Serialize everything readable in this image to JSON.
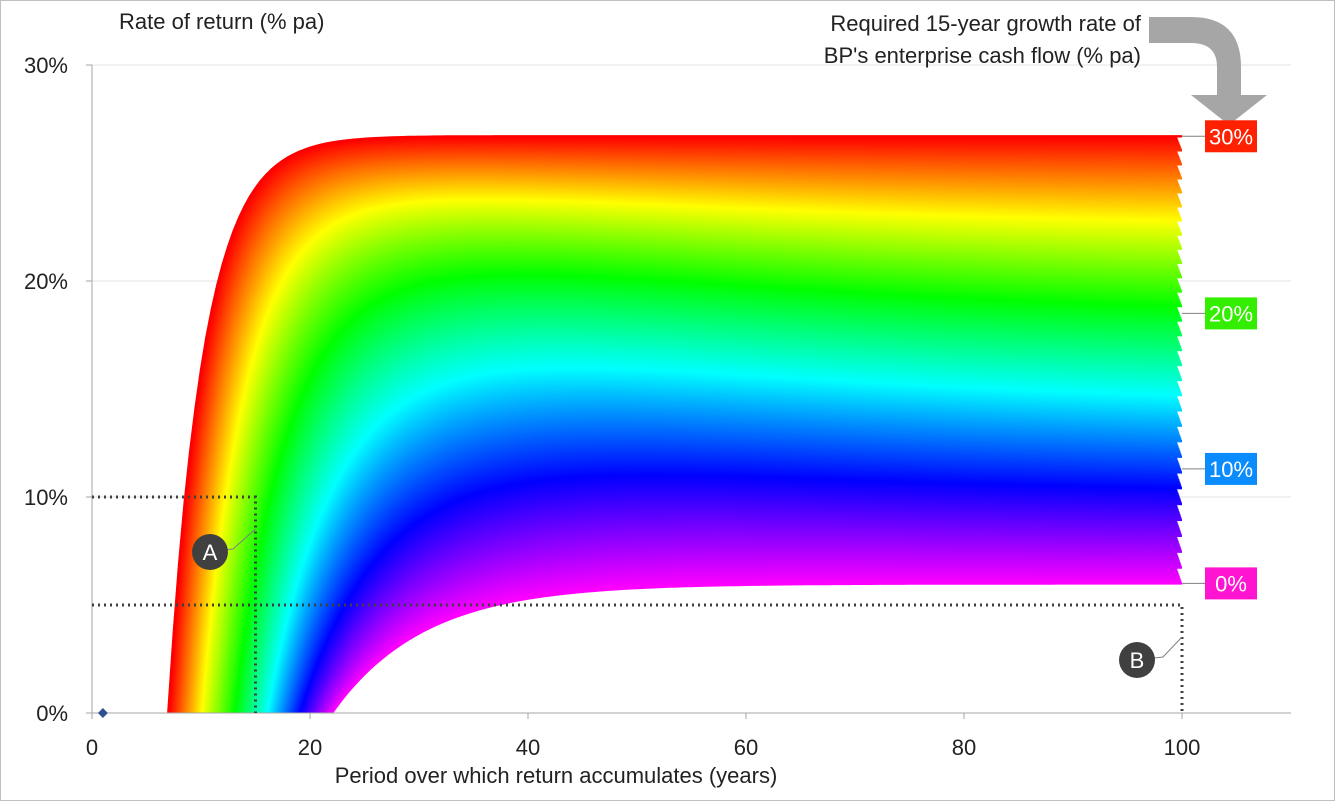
{
  "chart_data": {
    "type": "line",
    "ylabel": "Rate of return (% pa)",
    "xlabel": "Period over which return accumulates (years)",
    "xlim": [
      0,
      110
    ],
    "ylim": [
      0,
      30
    ],
    "x_ticks": [
      0,
      20,
      40,
      60,
      80,
      100
    ],
    "x_tick_labels": [
      "0",
      "20",
      "40",
      "60",
      "80",
      "100"
    ],
    "y_ticks": [
      0,
      10,
      20,
      30
    ],
    "y_tick_labels": [
      "0%",
      "10%",
      "20%",
      "30%"
    ],
    "grid": "horizontal",
    "legend_title": "Required 15-year growth rate of BP's enterprise cash flow (% pa)",
    "legend_title_lines": [
      "Required 15-year growth rate of",
      "BP's enterprise cash flow (% pa)"
    ],
    "series_family": {
      "description_growth_range": [
        0,
        30
      ],
      "series_count": 301,
      "shape": "rises steeply from zero then flattens to a plateau",
      "min_series": {
        "zero_crossing_year": 22,
        "value_at_100": 6.0
      },
      "max_series": {
        "zero_crossing_year": 7,
        "value_at_100": 26.7
      }
    },
    "end_labels": [
      {
        "label": "30%",
        "value_at_100": 26.7,
        "color": "#ff2000"
      },
      {
        "label": "20%",
        "value_at_100": 18.5,
        "color": "#33ee00"
      },
      {
        "label": "10%",
        "value_at_100": 11.3,
        "color": "#0a8cff"
      },
      {
        "label": "0%",
        "value_at_100": 6.0,
        "color": "#ff14d2"
      }
    ],
    "annotations": [
      {
        "label": "A",
        "x": 15,
        "y": 10
      },
      {
        "label": "B",
        "x": 100,
        "y": 5
      }
    ],
    "marker_point": {
      "x": 1,
      "y": 0
    }
  }
}
